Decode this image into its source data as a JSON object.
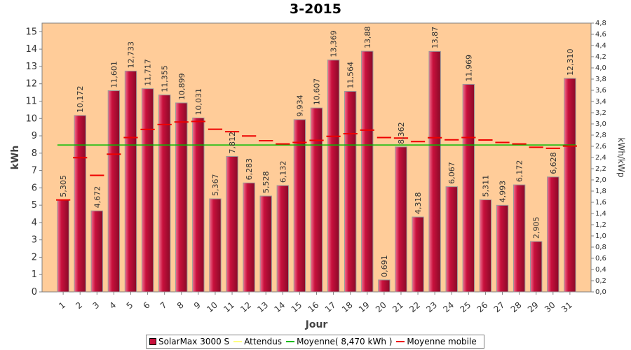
{
  "chart_data": {
    "type": "bar",
    "title": "3-2015",
    "xlabel": "Jour",
    "ylabel": "kWh",
    "y2label": "kWh/kWp",
    "ylim": [
      0,
      15.5
    ],
    "y2lim": [
      0,
      4.8
    ],
    "yticks": [
      0,
      1,
      2,
      3,
      4,
      5,
      6,
      7,
      8,
      9,
      10,
      11,
      12,
      13,
      14,
      15
    ],
    "y2ticks": [
      "0,0",
      "0,2",
      "0,4",
      "0,6",
      "0,8",
      "1,0",
      "1,2",
      "1,4",
      "1,6",
      "1,8",
      "2,0",
      "2,2",
      "2,4",
      "2,6",
      "2,8",
      "3,0",
      "3,2",
      "3,4",
      "3,6",
      "3,8",
      "4,0",
      "4,2",
      "4,4",
      "4,6",
      "4,8"
    ],
    "categories": [
      "1",
      "2",
      "3",
      "4",
      "5",
      "6",
      "7",
      "8",
      "9",
      "10",
      "11",
      "12",
      "13",
      "14",
      "15",
      "16",
      "17",
      "18",
      "19",
      "20",
      "21",
      "22",
      "23",
      "24",
      "25",
      "26",
      "27",
      "28",
      "29",
      "30",
      "31"
    ],
    "series": [
      {
        "name": "SolarMax 3000 S",
        "color": "#c8103c",
        "values": [
          5.305,
          10.172,
          4.672,
          11.601,
          12.733,
          11.717,
          11.355,
          10.899,
          10.031,
          5.367,
          7.812,
          6.283,
          5.528,
          6.132,
          9.934,
          10.607,
          13.369,
          11.564,
          13.88,
          0.691,
          8.362,
          4.318,
          13.87,
          6.067,
          11.969,
          5.311,
          4.993,
          6.172,
          2.905,
          6.628,
          12.31
        ],
        "labels": [
          "5,305",
          "10,172",
          "4,672",
          "11,601",
          "12,733",
          "11,717",
          "11,355",
          "10,899",
          "10,031",
          "5,367",
          "7,812",
          "6,283",
          "5,528",
          "6,132",
          "9,934",
          "10,607",
          "13,369",
          "11,564",
          "13,88",
          "0,691",
          "8,362",
          "4,318",
          "13,87",
          "6,067",
          "11,969",
          "5,311",
          "4,993",
          "6,172",
          "2,905",
          "6,628",
          "12,310"
        ]
      },
      {
        "name": "Attendus",
        "color": "#ffff80",
        "values": [
          8.47,
          8.47,
          8.47,
          8.47,
          8.47,
          8.47,
          8.47,
          8.47,
          8.47,
          8.47,
          8.47,
          8.47,
          8.47,
          8.47,
          8.47,
          8.47,
          8.47,
          8.47,
          8.47,
          8.47,
          8.47,
          8.47,
          8.47,
          8.47,
          8.47,
          8.47,
          8.47,
          8.47,
          8.47,
          8.47,
          8.47
        ]
      },
      {
        "name": "Moyenne( 8,470 kWh )",
        "color": "#00bb00",
        "value": 8.47
      },
      {
        "name": "Moyenne mobile",
        "color": "#ee0000",
        "values": [
          5.305,
          7.74,
          6.72,
          7.94,
          8.9,
          9.37,
          9.65,
          9.8,
          9.83,
          9.38,
          9.24,
          8.99,
          8.72,
          8.53,
          8.62,
          8.74,
          8.97,
          9.12,
          9.33,
          8.9,
          8.87,
          8.67,
          8.89,
          8.77,
          8.9,
          8.76,
          8.62,
          8.53,
          8.34,
          8.28,
          8.41
        ]
      }
    ],
    "grid": false,
    "legend": "bottom"
  }
}
